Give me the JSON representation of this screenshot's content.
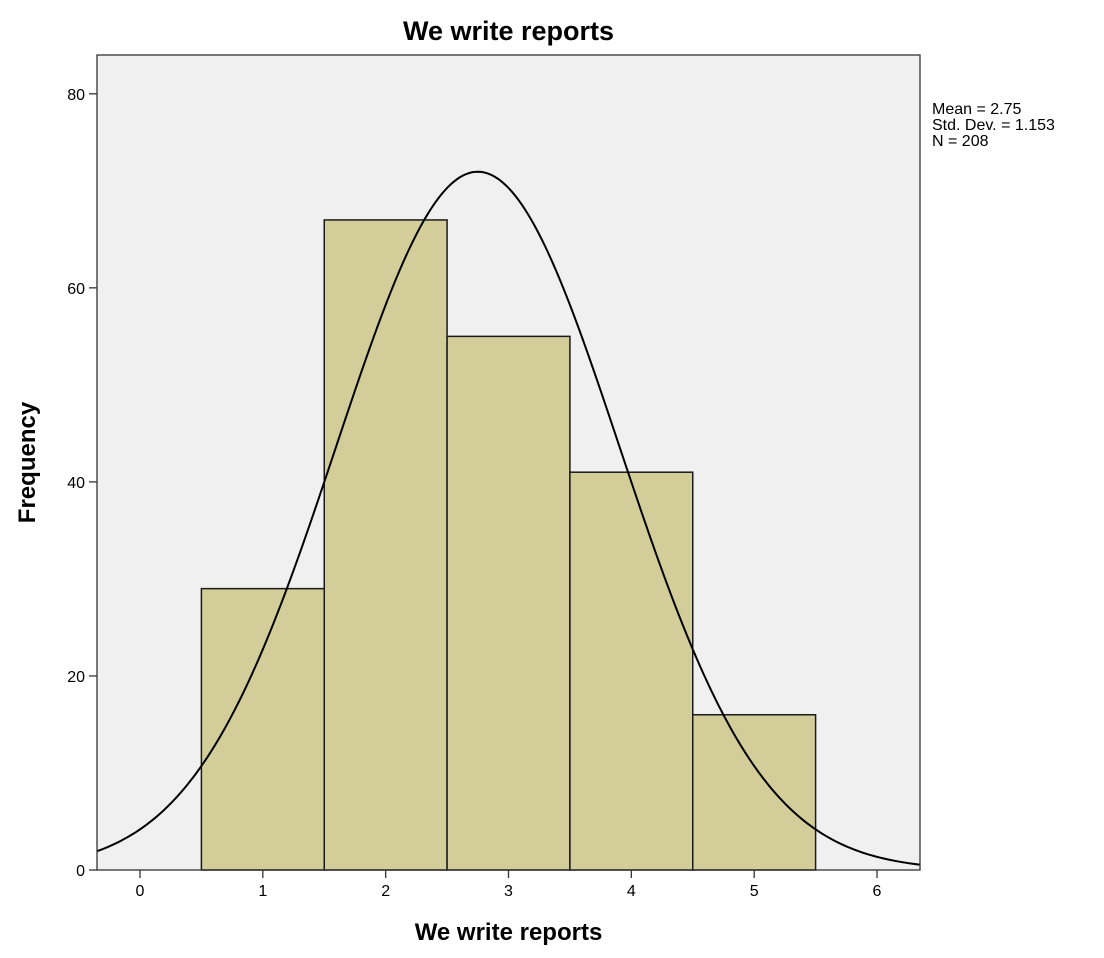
{
  "chart_data": {
    "type": "bar",
    "title": "We write reports",
    "xlabel": "We write reports",
    "ylabel": "Frequency",
    "categories": [
      "1",
      "2",
      "3",
      "4",
      "5"
    ],
    "x": [
      1,
      2,
      3,
      4,
      5
    ],
    "values": [
      29,
      67,
      55,
      41,
      16
    ],
    "bin_width": 1,
    "xlim": [
      -0.35,
      6.35
    ],
    "ylim": [
      0,
      84
    ],
    "x_ticks": [
      0,
      1,
      2,
      3,
      4,
      5,
      6
    ],
    "y_ticks": [
      0,
      20,
      40,
      60,
      80
    ],
    "normal_curve": {
      "mean": 2.75,
      "std_dev": 1.153,
      "n": 208
    },
    "stats_lines": [
      "Mean = 2.75",
      "Std. Dev. = 1.153",
      "N = 208"
    ],
    "grid": false,
    "legend": "none",
    "colors": {
      "bar_fill": "#d3ce99",
      "bar_stroke": "#1a1a1a",
      "plot_background": "#f0f0f0",
      "curve": "#000000"
    }
  }
}
